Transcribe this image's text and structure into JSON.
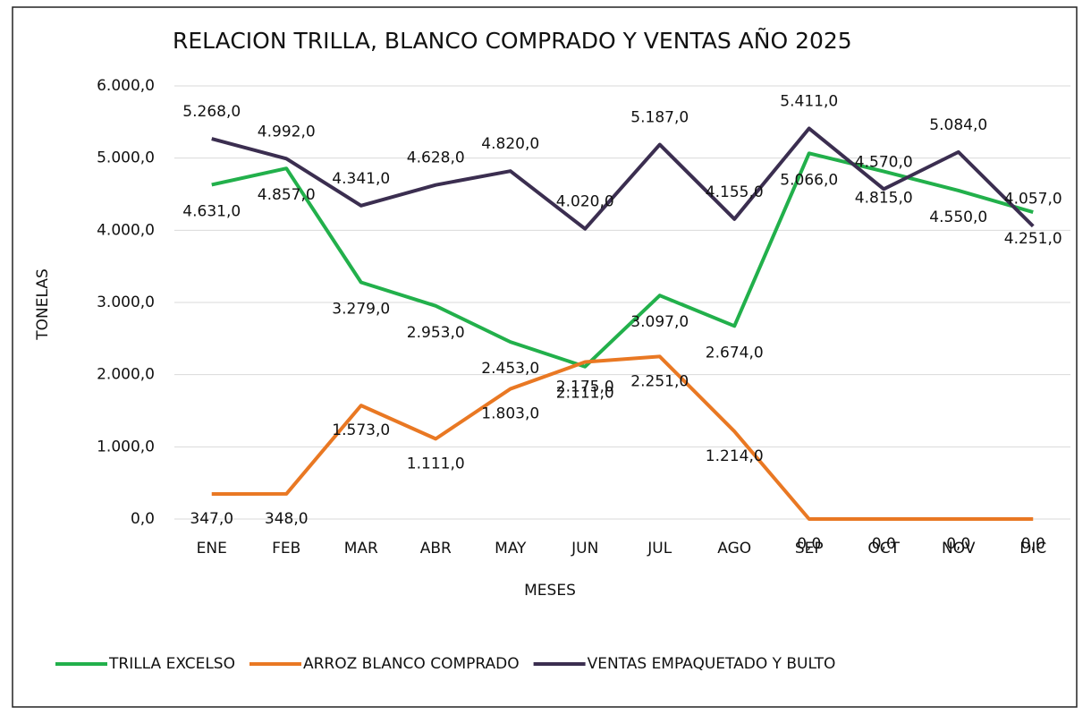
{
  "chart_data": {
    "type": "line",
    "title": "RELACION TRILLA, BLANCO COMPRADO Y VENTAS AÑO 2025",
    "y_label": "TONELAS",
    "x_label": "MESES",
    "categories": [
      "ENE",
      "FEB",
      "MAR",
      "ABR",
      "MAY",
      "JUN",
      "JUL",
      "AGO",
      "SEP",
      "OCT",
      "NOV",
      "DIC"
    ],
    "series": [
      {
        "name": "TRILLA EXCELSO",
        "color": "#22b04b",
        "values": [
          4631,
          4857,
          3279,
          2953,
          2453,
          2111,
          3097,
          2674,
          5066,
          4815,
          4550,
          4251
        ],
        "value_labels": [
          "4.631,0",
          "4.857,0",
          "3.279,0",
          "2.953,0",
          "2.453,0",
          "2.111,0",
          "3.097,0",
          "2.674,0",
          "5.066,0",
          "4.815,0",
          "4.550,0",
          "4.251,0"
        ]
      },
      {
        "name": "ARROZ BLANCO COMPRADO",
        "color": "#e97823",
        "values": [
          347,
          348,
          1573,
          1111,
          1803,
          2175,
          2251,
          1214,
          0,
          0,
          0,
          0
        ],
        "value_labels": [
          "347,0",
          "348,0",
          "1.573,0",
          "1.111,0",
          "1.803,0",
          "2.175,0",
          "2.251,0",
          "1.214,0",
          "0,0",
          "0,0",
          "0,0",
          "0,0"
        ]
      },
      {
        "name": "VENTAS EMPAQUETADO Y BULTO",
        "color": "#3b2e50",
        "values": [
          5268,
          4992,
          4341,
          4628,
          4820,
          4020,
          5187,
          4155,
          5411,
          4570,
          5084,
          4057
        ],
        "value_labels": [
          "5.268,0",
          "4.992,0",
          "4.341,0",
          "4.628,0",
          "4.820,0",
          "4.020,0",
          "5.187,0",
          "4.155,0",
          "5.411,0",
          "4.570,0",
          "5.084,0",
          "4.057,0"
        ]
      }
    ],
    "ylim": [
      0,
      6000
    ],
    "yticks": [
      {
        "value": 0,
        "label": "0,0"
      },
      {
        "value": 1000,
        "label": "1.000,0"
      },
      {
        "value": 2000,
        "label": "2.000,0"
      },
      {
        "value": 3000,
        "label": "3.000,0"
      },
      {
        "value": 4000,
        "label": "4.000,0"
      },
      {
        "value": 5000,
        "label": "5.000,0"
      },
      {
        "value": 6000,
        "label": "6.000,0"
      }
    ],
    "grid": true,
    "legend": "bottom"
  }
}
